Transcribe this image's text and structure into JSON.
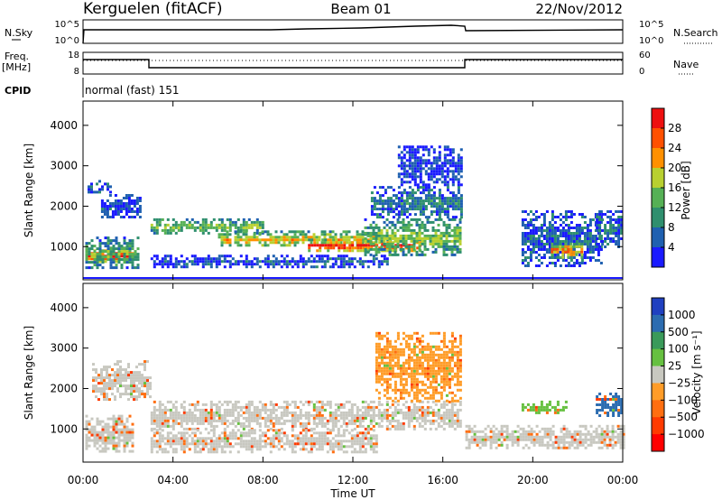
{
  "header": {
    "station": "Kerguelen (fitACF)",
    "beam": "Beam 01",
    "date": "22/Nov/2012"
  },
  "top_strips": {
    "nsky_label": "N.Sky",
    "nsearch_label": "N.Search",
    "freq_label": "Freq.",
    "freq_unit": "[MHz]",
    "nave_label": "Nave",
    "cpid_label": "CPID",
    "cpid_value": "normal (fast) 151",
    "nsky_ticks": [
      "10^5",
      "10^0"
    ],
    "freq_ticks": [
      "18",
      "8"
    ],
    "nave_ticks": [
      "60",
      "0"
    ]
  },
  "colors": {
    "power": [
      "#1a1aff",
      "#1f60b0",
      "#2f8f6e",
      "#55b055",
      "#b8d030",
      "#ff9000",
      "#ff5000",
      "#ee1010"
    ],
    "velocity": [
      "#2040c0",
      "#2c6cb0",
      "#3a9a5a",
      "#66c040",
      "#c8c8c0",
      "#ff9c28",
      "#ff6e10",
      "#ff3a00",
      "#ff0000"
    ]
  },
  "chart_data": [
    {
      "type": "heatmap",
      "name": "power-panel",
      "xlabel": "",
      "ylabel": "Slant Range [km]",
      "xlim": [
        0,
        24
      ],
      "ylim": [
        180,
        4600
      ],
      "yticks": [
        "1000",
        "2000",
        "3000",
        "4000"
      ],
      "yticks_values": [
        1000,
        2000,
        3000,
        4000
      ],
      "colorbar": {
        "label": "Power [dB]",
        "ticks": [
          "4",
          "8",
          "12",
          "16",
          "20",
          "24",
          "28"
        ],
        "range": [
          0,
          32
        ]
      },
      "regions": [
        {
          "t0": 0.1,
          "t1": 2.2,
          "r0": 600,
          "r1": 1000,
          "level": 6.5
        },
        {
          "t0": 0.1,
          "t1": 2.4,
          "r0": 450,
          "r1": 1250,
          "level": 2.5
        },
        {
          "t0": 0.2,
          "t1": 1.2,
          "r0": 2350,
          "r1": 2650,
          "level": 0.8
        },
        {
          "t0": 0.8,
          "t1": 2.6,
          "r0": 1700,
          "r1": 2300,
          "level": 0.6
        },
        {
          "t0": 3.0,
          "t1": 8.0,
          "r0": 1350,
          "r1": 1700,
          "level": 3.2
        },
        {
          "t0": 6.0,
          "t1": 13.0,
          "r0": 1000,
          "r1": 1400,
          "level": 4.0
        },
        {
          "t0": 10.0,
          "t1": 15.0,
          "r0": 900,
          "r1": 1200,
          "level": 6.2
        },
        {
          "t0": 12.5,
          "t1": 16.8,
          "r0": 800,
          "r1": 1700,
          "level": 3.0
        },
        {
          "t0": 12.8,
          "t1": 16.8,
          "r0": 1700,
          "r1": 2500,
          "level": 1.4
        },
        {
          "t0": 14.0,
          "t1": 16.8,
          "r0": 2500,
          "r1": 3500,
          "level": 0.4
        },
        {
          "t0": 3.0,
          "t1": 13.5,
          "r0": 500,
          "r1": 800,
          "level": 0.7
        },
        {
          "t0": 19.5,
          "t1": 23.0,
          "r0": 500,
          "r1": 1900,
          "level": 1.0
        },
        {
          "t0": 20.8,
          "t1": 22.2,
          "r0": 750,
          "r1": 1100,
          "level": 5.0
        },
        {
          "t0": 22.8,
          "t1": 24.0,
          "r0": 1000,
          "r1": 1900,
          "level": 1.0
        }
      ]
    },
    {
      "type": "heatmap",
      "name": "velocity-panel",
      "xlabel": "Time UT",
      "ylabel": "Slant Range [km]",
      "xlim": [
        0,
        24
      ],
      "ylim": [
        180,
        4600
      ],
      "xticks": [
        "00:00",
        "04:00",
        "08:00",
        "12:00",
        "16:00",
        "20:00",
        "00:00"
      ],
      "xticks_values": [
        0,
        4,
        8,
        12,
        16,
        20,
        24
      ],
      "yticks": [
        "1000",
        "2000",
        "3000",
        "4000"
      ],
      "yticks_values": [
        1000,
        2000,
        3000,
        4000
      ],
      "colorbar": {
        "label": "Velocity [m s⁻¹]",
        "ticks": [
          "1000",
          "500",
          "100",
          "25",
          "−25",
          "−100",
          "−500",
          "−1000"
        ]
      },
      "regions": [
        {
          "t0": 0.1,
          "t1": 2.2,
          "r0": 450,
          "r1": 1350,
          "level": 4
        },
        {
          "t0": 3.0,
          "t1": 16.8,
          "r0": 1000,
          "r1": 1700,
          "level": 4
        },
        {
          "t0": 3.0,
          "t1": 13.0,
          "r0": 400,
          "r1": 1000,
          "level": 4
        },
        {
          "t0": 13.0,
          "t1": 16.8,
          "r0": 1700,
          "r1": 3400,
          "level": 5
        },
        {
          "t0": 17.0,
          "t1": 24.0,
          "r0": 500,
          "r1": 1100,
          "level": 4
        },
        {
          "t0": 19.5,
          "t1": 21.5,
          "r0": 1400,
          "r1": 1700,
          "level": 3
        },
        {
          "t0": 22.8,
          "t1": 24.0,
          "r0": 1300,
          "r1": 1900,
          "level": 1
        },
        {
          "t0": 0.4,
          "t1": 3.0,
          "r0": 1700,
          "r1": 2700,
          "level": 4
        }
      ]
    }
  ]
}
